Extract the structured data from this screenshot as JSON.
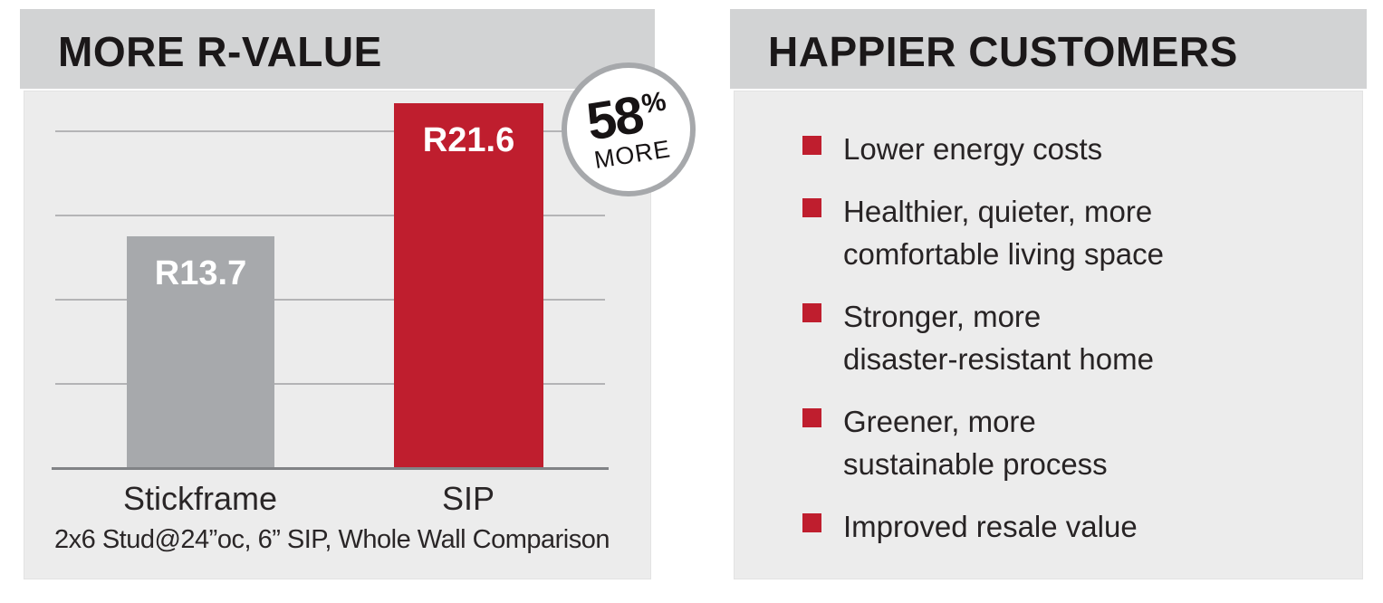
{
  "left_panel": {
    "title": "MORE R-VALUE",
    "badge": {
      "value": "58",
      "percent": "%",
      "label": "MORE"
    }
  },
  "chart_data": {
    "type": "bar",
    "title": "MORE R-VALUE",
    "categories": [
      "Stickframe",
      "SIP"
    ],
    "values": [
      13.7,
      21.6
    ],
    "bar_labels": [
      "R13.7",
      "R21.6"
    ],
    "bar_colors": [
      "#a7a9ac",
      "#bf1e2e"
    ],
    "annotation": "58% MORE",
    "caption": "2x6 Stud@24”oc, 6” SIP, Whole Wall Comparison",
    "xlabel": "",
    "ylabel": "",
    "ylim": [
      0,
      22.5
    ],
    "gridline_values": [
      5,
      10,
      15,
      20
    ],
    "grid": true,
    "legend": false
  },
  "right_panel": {
    "title": "HAPPIER CUSTOMERS",
    "bullets": [
      "Lower energy costs",
      "Healthier, quieter, more\ncomfortable living space",
      "Stronger, more\ndisaster-resistant home",
      "Greener, more\nsustainable process",
      "Improved resale value"
    ]
  },
  "colors": {
    "accent_red": "#bf1e2e",
    "bar_gray": "#a7a9ac",
    "header_bg": "#d2d3d4",
    "body_bg": "#ececec",
    "badge_ring": "#a6a8ab"
  }
}
